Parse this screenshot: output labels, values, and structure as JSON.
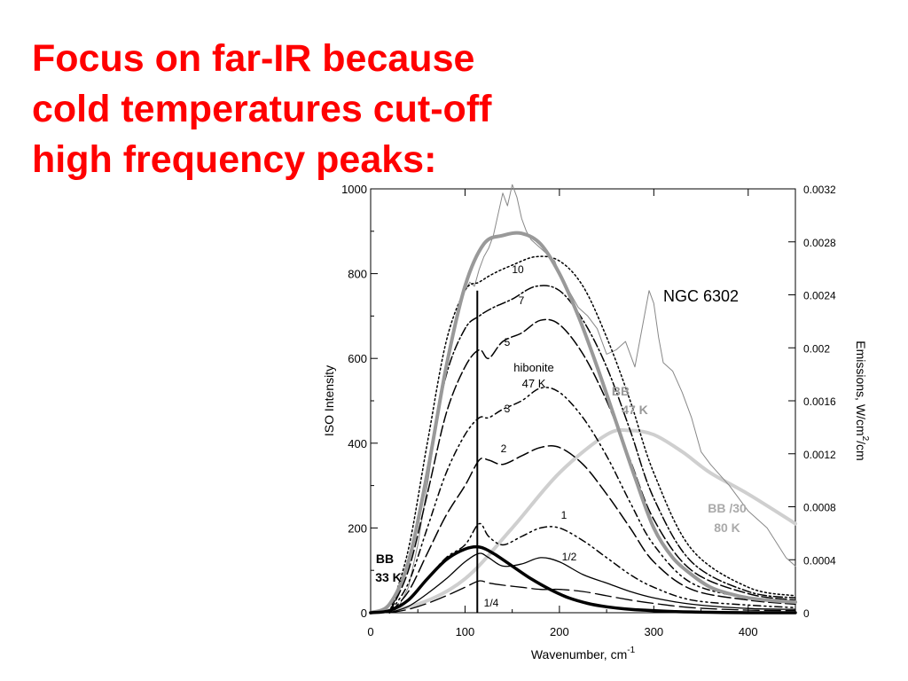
{
  "slide": {
    "title_lines": [
      "Focus on far-IR because",
      "cold temperatures cut-off",
      "high frequency peaks:"
    ],
    "title_color": "#ff0000"
  },
  "chart_data": {
    "type": "line",
    "xlabel": "Wavenumber, cm",
    "xlabel_sup": "-1",
    "ylabel_left": "ISO Intensity",
    "ylabel_right": "Emissions, W/cm",
    "ylabel_right_sup": "2",
    "ylabel_right_tail": "/cm",
    "xlim": [
      0,
      450
    ],
    "ylim_left": [
      0,
      1000
    ],
    "ylim_right": [
      0,
      0.0032
    ],
    "x_ticks": [
      "0",
      "100",
      "200",
      "300",
      "400"
    ],
    "y_ticks_left": [
      "0",
      "200",
      "400",
      "600",
      "800",
      "1000"
    ],
    "y_ticks_right": [
      "0",
      "0.0004",
      "0.0008",
      "0.0012",
      "0.0016",
      "0.002",
      "0.0024",
      "0.0028",
      "0.0032"
    ],
    "grid": false,
    "annotations": {
      "object": "NGC 6302",
      "hibonite_line1": "hibonite",
      "hibonite_line2": "47 K",
      "bb47_line1": "BB",
      "bb47_line2": "47 K",
      "bb80_line1": "BB /30",
      "bb80_line2": "80 K",
      "bb33_line1": "BB",
      "bb33_line2": "33 K",
      "curve_labels": [
        "10",
        "7",
        "5",
        "3",
        "2",
        "1",
        "1/2",
        "1/4"
      ]
    },
    "colors": {
      "bb47": "#999999",
      "bb80": "#cccccc",
      "bb33": "#000000",
      "spectrum": "#777777",
      "hibonite": "#000000"
    },
    "series": [
      {
        "id": "iso",
        "x": [
          20,
          30,
          40,
          50,
          60,
          70,
          80,
          90,
          100,
          105,
          110,
          115,
          120,
          125,
          130,
          135,
          140,
          145,
          150,
          155,
          160,
          165,
          170,
          175,
          180,
          185,
          190,
          195,
          200,
          210,
          220,
          230,
          240,
          250,
          260,
          270,
          280,
          290,
          295,
          300,
          305,
          310,
          320,
          330,
          340,
          350,
          360,
          380,
          400,
          420,
          440,
          450
        ],
        "y": [
          0,
          15,
          60,
          160,
          300,
          450,
          580,
          690,
          760,
          780,
          770,
          810,
          840,
          860,
          890,
          940,
          990,
          960,
          1010,
          980,
          930,
          900,
          880,
          870,
          860,
          850,
          840,
          830,
          800,
          760,
          720,
          700,
          670,
          610,
          620,
          640,
          580,
          700,
          760,
          730,
          650,
          590,
          570,
          520,
          460,
          380,
          350,
          300,
          240,
          200,
          130,
          110
        ]
      },
      {
        "id": "bb47",
        "x": [
          0,
          20,
          40,
          60,
          80,
          100,
          120,
          140,
          160,
          180,
          200,
          220,
          240,
          260,
          280,
          300,
          320,
          340,
          360,
          380,
          400,
          420,
          450
        ],
        "y": [
          0,
          20,
          120,
          330,
          580,
          770,
          870,
          890,
          895,
          870,
          800,
          700,
          580,
          450,
          320,
          200,
          130,
          90,
          60,
          45,
          35,
          30,
          25
        ]
      },
      {
        "id": "bb80",
        "x": [
          0,
          50,
          100,
          150,
          200,
          250,
          275,
          300,
          330,
          360,
          400,
          450
        ],
        "y": [
          0,
          20,
          80,
          200,
          330,
          420,
          430,
          420,
          380,
          330,
          280,
          210
        ]
      },
      {
        "id": "bb33",
        "x": [
          0,
          20,
          40,
          60,
          80,
          100,
          115,
          130,
          150,
          170,
          190,
          210,
          230,
          250,
          270,
          290,
          320,
          360,
          400,
          450
        ],
        "y": [
          0,
          5,
          30,
          80,
          125,
          150,
          155,
          140,
          110,
          80,
          55,
          35,
          22,
          14,
          9,
          6,
          3,
          1,
          0,
          0
        ]
      },
      {
        "id": "hib10",
        "label": "10",
        "x": [
          20,
          40,
          60,
          80,
          100,
          115,
          130,
          150,
          175,
          200,
          225,
          250,
          275,
          300,
          340,
          400,
          450
        ],
        "y": [
          0,
          150,
          400,
          640,
          760,
          780,
          800,
          820,
          840,
          830,
          770,
          650,
          500,
          330,
          150,
          60,
          40
        ]
      },
      {
        "id": "hib7",
        "label": "7",
        "x": [
          20,
          40,
          60,
          80,
          100,
          115,
          130,
          150,
          175,
          200,
          225,
          250,
          275,
          300,
          340,
          400,
          450
        ],
        "y": [
          0,
          120,
          340,
          560,
          670,
          700,
          720,
          740,
          770,
          760,
          690,
          580,
          430,
          270,
          120,
          50,
          35
        ]
      },
      {
        "id": "hib5",
        "label": "5",
        "x": [
          20,
          40,
          60,
          80,
          100,
          115,
          125,
          140,
          160,
          180,
          200,
          225,
          250,
          275,
          300,
          340,
          400,
          450
        ],
        "y": [
          0,
          100,
          280,
          470,
          580,
          620,
          600,
          640,
          660,
          690,
          680,
          610,
          500,
          360,
          220,
          100,
          45,
          30
        ]
      },
      {
        "id": "hib3",
        "label": "3",
        "x": [
          20,
          40,
          60,
          80,
          100,
          115,
          125,
          140,
          160,
          180,
          200,
          225,
          250,
          275,
          300,
          340,
          400,
          450
        ],
        "y": [
          0,
          70,
          200,
          330,
          420,
          460,
          460,
          480,
          500,
          530,
          520,
          460,
          370,
          260,
          160,
          70,
          35,
          25
        ]
      },
      {
        "id": "hib2",
        "label": "2",
        "x": [
          20,
          40,
          60,
          80,
          100,
          115,
          125,
          140,
          160,
          180,
          200,
          225,
          250,
          275,
          300,
          340,
          400,
          450
        ],
        "y": [
          0,
          50,
          140,
          230,
          300,
          360,
          360,
          350,
          370,
          390,
          390,
          350,
          280,
          200,
          120,
          55,
          30,
          20
        ]
      },
      {
        "id": "hib1",
        "label": "1",
        "x": [
          20,
          40,
          60,
          80,
          100,
          115,
          125,
          140,
          160,
          180,
          200,
          225,
          250,
          275,
          300,
          340,
          400,
          450
        ],
        "y": [
          0,
          30,
          80,
          130,
          160,
          210,
          180,
          160,
          180,
          200,
          200,
          170,
          130,
          90,
          60,
          30,
          18,
          12
        ]
      },
      {
        "id": "hib05",
        "label": "1/2",
        "x": [
          20,
          40,
          60,
          80,
          100,
          115,
          125,
          140,
          160,
          180,
          200,
          225,
          250,
          275,
          300,
          340,
          400,
          450
        ],
        "y": [
          0,
          15,
          45,
          80,
          120,
          140,
          130,
          110,
          115,
          130,
          120,
          90,
          70,
          50,
          35,
          20,
          10,
          8
        ]
      },
      {
        "id": "hib025",
        "label": "1/4",
        "x": [
          20,
          40,
          60,
          80,
          100,
          115,
          125,
          140,
          160,
          180,
          200,
          225,
          250,
          275,
          300,
          340,
          400,
          450
        ],
        "y": [
          0,
          8,
          22,
          40,
          60,
          75,
          70,
          65,
          60,
          55,
          55,
          50,
          40,
          30,
          22,
          12,
          6,
          5
        ]
      }
    ],
    "vertical_line": {
      "x": 113,
      "y_from": 0,
      "y_to": 760
    }
  }
}
